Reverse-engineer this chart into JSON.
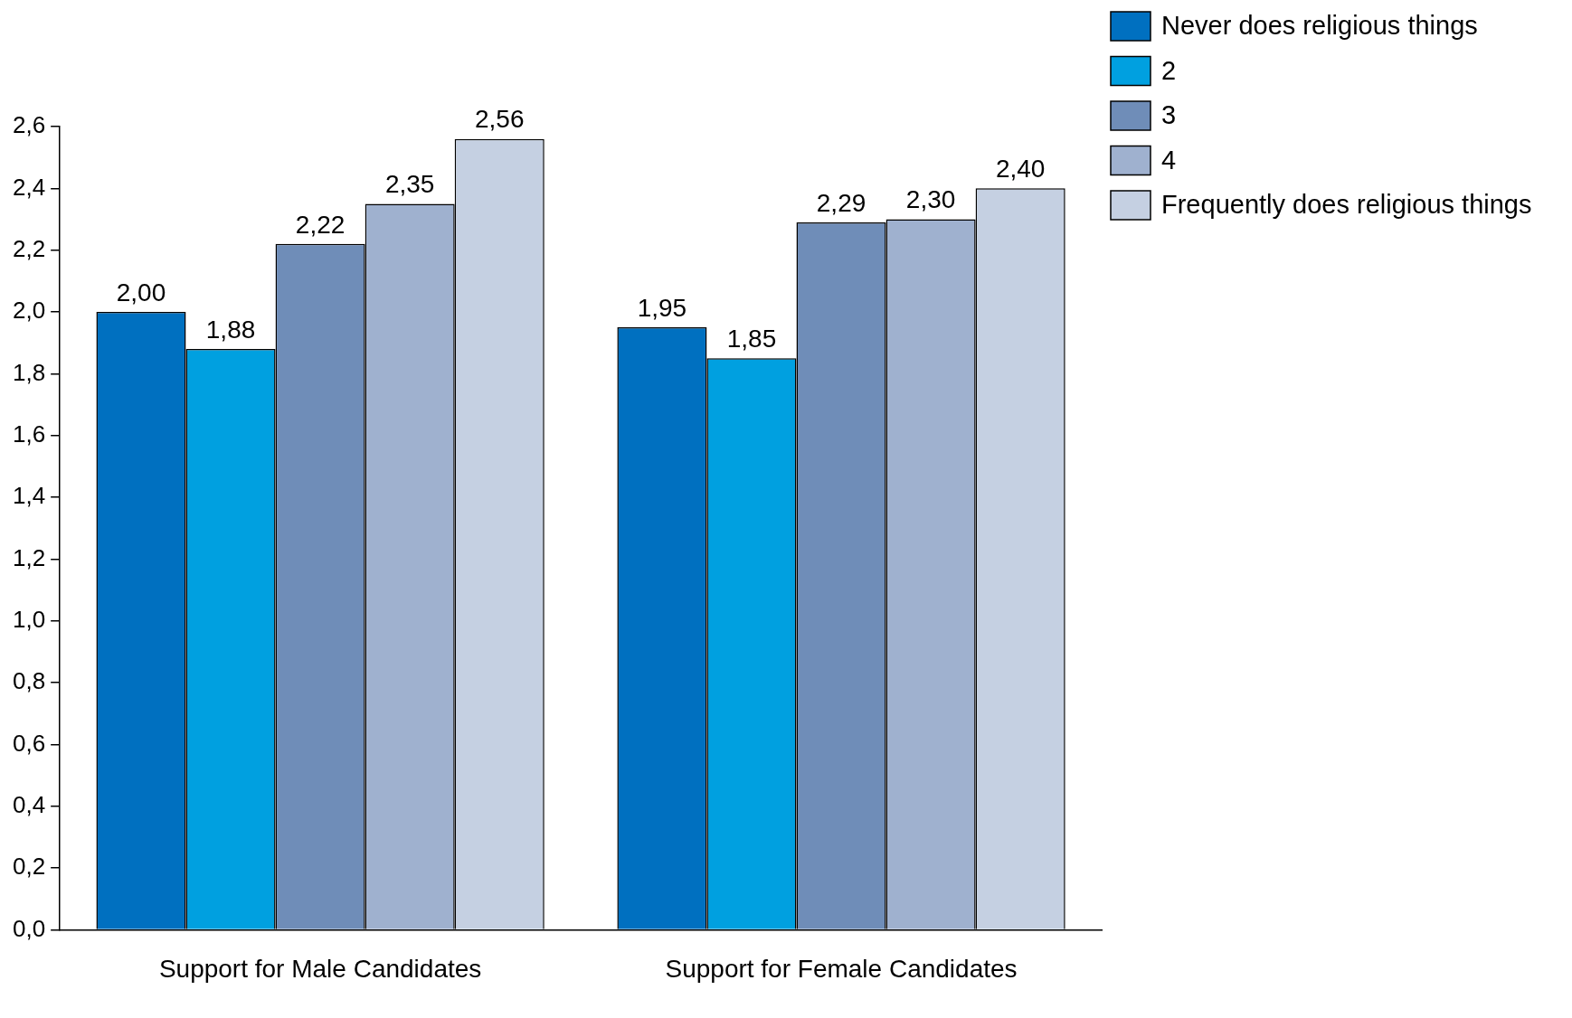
{
  "chart_data": {
    "type": "bar",
    "categories": [
      "Support for Male Candidates",
      "Support for Female Candidates"
    ],
    "series": [
      {
        "name": "Never does religious things",
        "color": "#0070c0",
        "values": [
          2.0,
          1.95
        ],
        "value_labels": [
          "2,00",
          "1,95"
        ]
      },
      {
        "name": "2",
        "color": "#00a0e0",
        "values": [
          1.88,
          1.85
        ],
        "value_labels": [
          "1,88",
          "1,85"
        ]
      },
      {
        "name": "3",
        "color": "#6f8db8",
        "values": [
          2.22,
          2.29
        ],
        "value_labels": [
          "2,22",
          "2,29"
        ]
      },
      {
        "name": "4",
        "color": "#9fb1cf",
        "values": [
          2.35,
          2.3
        ],
        "value_labels": [
          "2,35",
          "2,30"
        ]
      },
      {
        "name": "Frequently does religious things",
        "color": "#c5d0e2",
        "values": [
          2.56,
          2.4
        ],
        "value_labels": [
          "2,56",
          "2,40"
        ]
      }
    ],
    "ylim": [
      0,
      2.6
    ],
    "yticks": [
      {
        "value": 0,
        "label": "0,0"
      },
      {
        "value": 0.2,
        "label": "0,2"
      },
      {
        "value": 0.4,
        "label": "0,4"
      },
      {
        "value": 0.6,
        "label": "0,6"
      },
      {
        "value": 0.8,
        "label": "0,8"
      },
      {
        "value": 1.0,
        "label": "1,0"
      },
      {
        "value": 1.2,
        "label": "1,2"
      },
      {
        "value": 1.4,
        "label": "1,4"
      },
      {
        "value": 1.6,
        "label": "1,6"
      },
      {
        "value": 1.8,
        "label": "1,8"
      },
      {
        "value": 2.0,
        "label": "2,0"
      },
      {
        "value": 2.2,
        "label": "2,2"
      },
      {
        "value": 2.4,
        "label": "2,4"
      },
      {
        "value": 2.6,
        "label": "2,6"
      }
    ],
    "grid": false,
    "legend": "top right"
  }
}
